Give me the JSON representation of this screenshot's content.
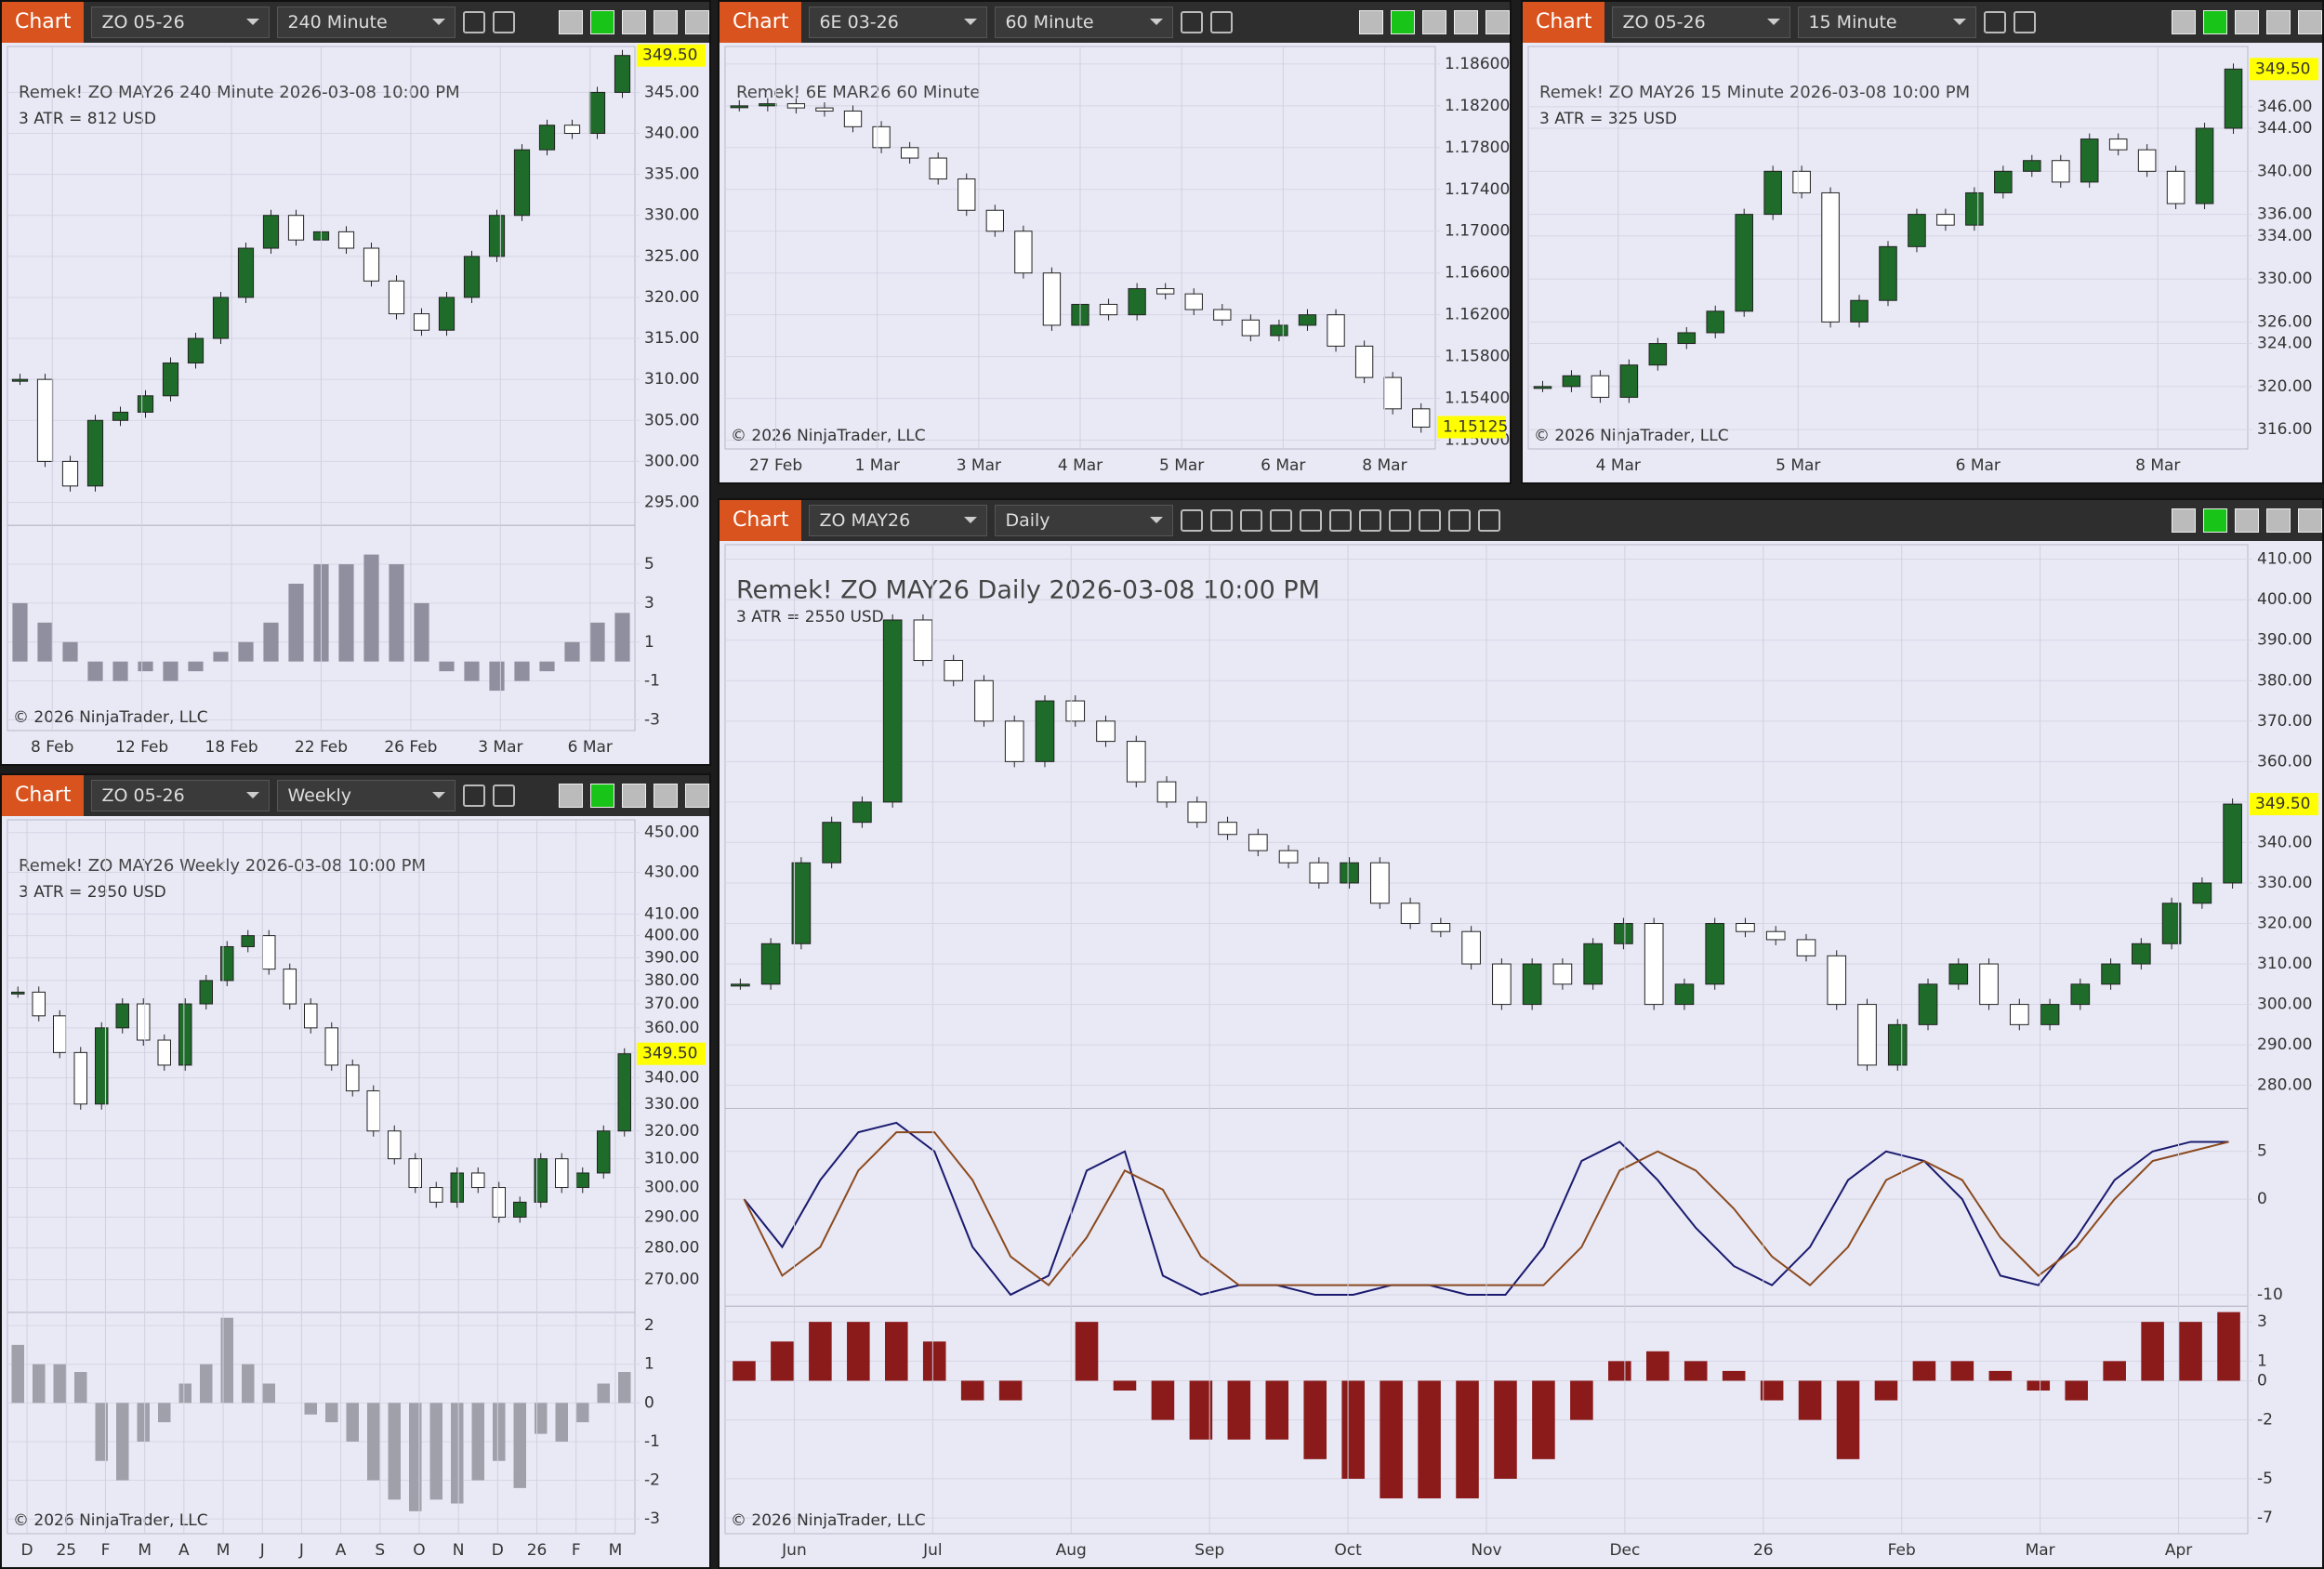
{
  "windows": [
    {
      "tab": "Chart",
      "instrument": "ZO 05-26",
      "interval": "240 Minute",
      "chart": {
        "type": "candlestick",
        "info": [
          "Remek!  ZO MAY26  240 Minute  2026-03-08 10:00 PM",
          "3 ATR = 812 USD"
        ],
        "copyright": "© 2026 NinjaTrader, LLC",
        "last_label": "349.50",
        "log": false,
        "values": [
          310,
          300,
          297,
          305,
          306,
          308,
          312,
          315,
          320,
          326,
          330,
          327,
          328,
          326,
          322,
          318,
          316,
          320,
          325,
          330,
          338,
          341,
          340,
          345,
          349.5
        ],
        "ylim": [
          292.2,
          350.6
        ],
        "yticks": [
          {
            "value": 345,
            "label": "345.00"
          },
          {
            "value": 340,
            "label": "340.00"
          },
          {
            "value": 335,
            "label": "335.00"
          },
          {
            "value": 330,
            "label": "330.00"
          },
          {
            "value": 325,
            "label": "325.00"
          },
          {
            "value": 320,
            "label": "320.00"
          },
          {
            "value": 315,
            "label": "315.00"
          },
          {
            "value": 310,
            "label": "310.00"
          },
          {
            "value": 305,
            "label": "305.00"
          },
          {
            "value": 300,
            "label": "300.00"
          },
          {
            "value": 295,
            "label": "295.00"
          }
        ],
        "xlabels": [
          "8 Feb",
          "12 Feb",
          "18 Feb",
          "22 Feb",
          "26 Feb",
          "3 Mar",
          "6 Mar"
        ],
        "panels": [
          {
            "type": "bar",
            "color": "#8f8f9f",
            "ylim": [
              -3.55,
              7
            ],
            "yticks": [
              5,
              3,
              1,
              -1,
              -3
            ],
            "values": [
              3,
              2,
              1,
              -1,
              -1,
              -0.5,
              -1,
              -0.5,
              0.5,
              1,
              2,
              4,
              5,
              5,
              5.5,
              5,
              3,
              -0.5,
              -1,
              -1.5,
              -1,
              -0.5,
              1,
              2,
              2.5
            ]
          }
        ]
      }
    },
    {
      "tab": "Chart",
      "instrument": "6E 03-26",
      "interval": "60 Minute",
      "chart": {
        "type": "candlestick",
        "info": [
          "Remek!  6E MAR26  60 Minute"
        ],
        "copyright": "© 2026 NinjaTrader, LLC",
        "last_label": "1.15125",
        "log": false,
        "values": [
          1.182,
          1.1822,
          1.1818,
          1.1815,
          1.18,
          1.178,
          1.177,
          1.175,
          1.172,
          1.17,
          1.166,
          1.161,
          1.163,
          1.162,
          1.1645,
          1.164,
          1.1625,
          1.1615,
          1.16,
          1.161,
          1.162,
          1.159,
          1.156,
          1.153,
          1.15125
        ],
        "ylim": [
          1.14916,
          1.18768
        ],
        "yticks": [
          {
            "value": 1.186,
            "label": "1.18600"
          },
          {
            "value": 1.182,
            "label": "1.18200"
          },
          {
            "value": 1.178,
            "label": "1.17800"
          },
          {
            "value": 1.174,
            "label": "1.17400"
          },
          {
            "value": 1.17,
            "label": "1.17000"
          },
          {
            "value": 1.166,
            "label": "1.16600"
          },
          {
            "value": 1.162,
            "label": "1.16200"
          },
          {
            "value": 1.158,
            "label": "1.15800"
          },
          {
            "value": 1.154,
            "label": "1.15400"
          },
          {
            "value": 1.15,
            "label": "1.15000"
          }
        ],
        "xlabels": [
          "27 Feb",
          "1 Mar",
          "3 Mar",
          "4 Mar",
          "5 Mar",
          "6 Mar",
          "8 Mar"
        ],
        "panels": []
      }
    },
    {
      "tab": "Chart",
      "instrument": "ZO 05-26",
      "interval": "15 Minute",
      "chart": {
        "type": "candlestick",
        "info": [
          "Remek!  ZO MAY26  15 Minute  2026-03-08 10:00 PM",
          "3 ATR = 325 USD"
        ],
        "copyright": "© 2026 NinjaTrader, LLC",
        "last_label": "349.50",
        "log": false,
        "values": [
          320,
          321,
          319,
          322,
          324,
          325,
          327,
          336,
          340,
          338,
          326,
          328,
          333,
          336,
          335,
          338,
          340,
          341,
          339,
          343,
          342,
          340,
          337,
          344,
          349.5
        ],
        "ylim": [
          314.2,
          351.6
        ],
        "yticks": [
          {
            "value": 346,
            "label": "346.00"
          },
          {
            "value": 344,
            "label": "344.00"
          },
          {
            "value": 340,
            "label": "340.00"
          },
          {
            "value": 336,
            "label": "336.00"
          },
          {
            "value": 334,
            "label": "334.00"
          },
          {
            "value": 330,
            "label": "330.00"
          },
          {
            "value": 326,
            "label": "326.00"
          },
          {
            "value": 324,
            "label": "324.00"
          },
          {
            "value": 320,
            "label": "320.00"
          },
          {
            "value": 316,
            "label": "316.00"
          }
        ],
        "xlabels": [
          "4 Mar",
          "5 Mar",
          "6 Mar",
          "8 Mar"
        ],
        "panels": []
      }
    },
    {
      "tab": "Chart",
      "instrument": "ZO 05-26",
      "interval": "Weekly",
      "chart": {
        "type": "candlestick",
        "info": [
          "Remek!  ZO MAY26  Weekly  2026-03-08 10:00 PM",
          "3 ATR = 2950 USD"
        ],
        "copyright": "© 2026 NinjaTrader, LLC",
        "last_label": "349.50",
        "log": true,
        "values": [
          375,
          365,
          350,
          330,
          360,
          370,
          355,
          345,
          370,
          380,
          395,
          400,
          385,
          370,
          360,
          345,
          335,
          320,
          310,
          300,
          295,
          305,
          300,
          290,
          295,
          310,
          300,
          305,
          320,
          349.5
        ],
        "ylim": [
          260.1,
          456.6
        ],
        "yticks": [
          {
            "value": 450,
            "label": "450.00"
          },
          {
            "value": 430,
            "label": "430.00"
          },
          {
            "value": 410,
            "label": "410.00"
          },
          {
            "value": 400,
            "label": "400.00"
          },
          {
            "value": 390,
            "label": "390.00"
          },
          {
            "value": 380,
            "label": "380.00"
          },
          {
            "value": 370,
            "label": "370.00"
          },
          {
            "value": 360,
            "label": "360.00"
          },
          {
            "value": 350,
            "label": "350.00"
          },
          {
            "value": 340,
            "label": "340.00"
          },
          {
            "value": 330,
            "label": "330.00"
          },
          {
            "value": 320,
            "label": "320.00"
          },
          {
            "value": 310,
            "label": "310.00"
          },
          {
            "value": 300,
            "label": "300.00"
          },
          {
            "value": 290,
            "label": "290.00"
          },
          {
            "value": 280,
            "label": "280.00"
          },
          {
            "value": 270,
            "label": "270.00"
          }
        ],
        "xlabels": [
          "D",
          "25",
          "F",
          "M",
          "A",
          "M",
          "J",
          "J",
          "A",
          "S",
          "O",
          "N",
          "D",
          "26",
          "F",
          "M"
        ],
        "panels": [
          {
            "type": "bar",
            "color": "#a0a0aa",
            "ylim": [
              -3.38,
              2.34
            ],
            "yticks": [
              2,
              1,
              0,
              -1,
              -2,
              -3
            ],
            "values": [
              1.5,
              1,
              1,
              0.8,
              -1.5,
              -2,
              -1,
              -0.5,
              0.5,
              1,
              2.2,
              1,
              0.5,
              0,
              -0.3,
              -0.5,
              -1,
              -2,
              -2.5,
              -2.8,
              -2.5,
              -2.6,
              -2,
              -1.5,
              -2.2,
              -0.8,
              -1,
              -0.5,
              0.5,
              0.8
            ]
          }
        ]
      }
    },
    {
      "tab": "Chart",
      "instrument": "ZO MAY26",
      "interval": "Daily",
      "chart": {
        "type": "candlestick",
        "info": [
          "Remek!  ZO MAY26  Daily  2026-03-08 10:00 PM",
          "3 ATR = 2550 USD"
        ],
        "copyright": "© 2026 NinjaTrader, LLC",
        "last_label": "349.50",
        "log": false,
        "values": [
          305,
          315,
          335,
          345,
          350,
          395,
          385,
          380,
          370,
          360,
          375,
          370,
          365,
          355,
          350,
          345,
          342,
          338,
          335,
          330,
          335,
          325,
          320,
          318,
          310,
          300,
          310,
          305,
          315,
          320,
          300,
          305,
          320,
          318,
          316,
          312,
          300,
          285,
          295,
          305,
          310,
          300,
          295,
          300,
          305,
          310,
          315,
          325,
          330,
          349.5
        ],
        "ylim": [
          274.3,
          413.6
        ],
        "yticks": [
          {
            "value": 410,
            "label": "410.00"
          },
          {
            "value": 400,
            "label": "400.00"
          },
          {
            "value": 390,
            "label": "390.00"
          },
          {
            "value": 380,
            "label": "380.00"
          },
          {
            "value": 370,
            "label": "370.00"
          },
          {
            "value": 360,
            "label": "360.00"
          },
          {
            "value": 350,
            "label": "350.00"
          },
          {
            "value": 340,
            "label": "340.00"
          },
          {
            "value": 330,
            "label": "330.00"
          },
          {
            "value": 320,
            "label": "320.00"
          },
          {
            "value": 310,
            "label": "310.00"
          },
          {
            "value": 300,
            "label": "300.00"
          },
          {
            "value": 290,
            "label": "290.00"
          },
          {
            "value": 280,
            "label": "280.00"
          }
        ],
        "xlabels": [
          "Jun",
          "Jul",
          "Aug",
          "Sep",
          "Oct",
          "Nov",
          "Dec",
          "26",
          "Feb",
          "Mar",
          "Apr"
        ],
        "panels": [
          {
            "type": "line",
            "ylim": [
              -11.2,
              9.5
            ],
            "yticks": [
              5,
              0,
              -10
            ],
            "series": [
              {
                "color": "#1a1a6e",
                "values": [
                  0,
                  -5,
                  2,
                  7,
                  8,
                  5,
                  -5,
                  -10,
                  -8,
                  3,
                  5,
                  -8,
                  -10,
                  -9,
                  -9,
                  -10,
                  -10,
                  -9,
                  -9,
                  -10,
                  -10,
                  -5,
                  4,
                  6,
                  2,
                  -3,
                  -7,
                  -9,
                  -5,
                  2,
                  5,
                  4,
                  0,
                  -8,
                  -9,
                  -4,
                  2,
                  5,
                  6,
                  6
                ]
              },
              {
                "color": "#8b4a1e",
                "values": [
                  0,
                  -8,
                  -5,
                  3,
                  7,
                  7,
                  2,
                  -6,
                  -9,
                  -4,
                  3,
                  1,
                  -6,
                  -9,
                  -9,
                  -9,
                  -9,
                  -9,
                  -9,
                  -9,
                  -9,
                  -9,
                  -5,
                  3,
                  5,
                  3,
                  -1,
                  -6,
                  -9,
                  -5,
                  2,
                  4,
                  2,
                  -4,
                  -8,
                  -5,
                  0,
                  4,
                  5,
                  6
                ]
              }
            ]
          },
          {
            "type": "bar",
            "color": "#8b1a1a",
            "ylim": [
              -7.8,
              3.8
            ],
            "yticks": [
              3,
              1,
              0,
              -2,
              -5,
              -7
            ],
            "values": [
              1,
              2,
              3,
              3,
              3,
              2,
              -1,
              -1,
              0,
              3,
              -0.5,
              -2,
              -3,
              -3,
              -3,
              -4,
              -5,
              -6,
              -6,
              -6,
              -5,
              -4,
              -2,
              1,
              1.5,
              1,
              0.5,
              -1,
              -2,
              -4,
              -1,
              1,
              1,
              0.5,
              -0.5,
              -1,
              1,
              3,
              3,
              3.5
            ]
          }
        ]
      }
    }
  ]
}
